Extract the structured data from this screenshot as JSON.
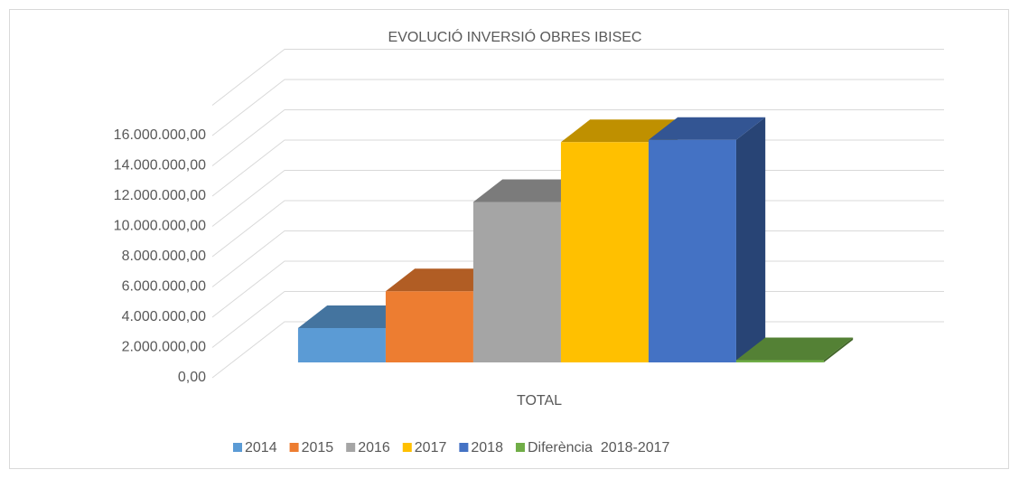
{
  "chart_data": {
    "type": "bar3d",
    "title": "EVOLUCIÓ INVERSIÓ OBRES IBISEC",
    "categories": [
      "TOTAL"
    ],
    "series": [
      {
        "name": "2014",
        "color": "#5b9bd5",
        "values": [
          2270000
        ]
      },
      {
        "name": "2015",
        "color": "#ed7d31",
        "values": [
          4700000
        ]
      },
      {
        "name": "2016",
        "color": "#a5a5a5",
        "values": [
          10600000
        ]
      },
      {
        "name": "2017",
        "color": "#ffc000",
        "values": [
          14550000
        ]
      },
      {
        "name": "2018",
        "color": "#4472c4",
        "values": [
          14700000
        ]
      },
      {
        "name": "Diferència  2018-2017",
        "color": "#70ad47",
        "values": [
          150000
        ]
      }
    ],
    "ylim": [
      0,
      18000000
    ],
    "yticks": [
      {
        "value": 0,
        "label": "0,00"
      },
      {
        "value": 2000000,
        "label": "2.000.000,00"
      },
      {
        "value": 4000000,
        "label": "4.000.000,00"
      },
      {
        "value": 6000000,
        "label": "6.000.000,00"
      },
      {
        "value": 8000000,
        "label": "8.000.000,00"
      },
      {
        "value": 10000000,
        "label": "10.000.000,00"
      },
      {
        "value": 12000000,
        "label": "12.000.000,00"
      },
      {
        "value": 14000000,
        "label": "14.000.000,00"
      },
      {
        "value": 16000000,
        "label": "16.000.000,00"
      }
    ],
    "grid": true,
    "legend": "bottom"
  }
}
